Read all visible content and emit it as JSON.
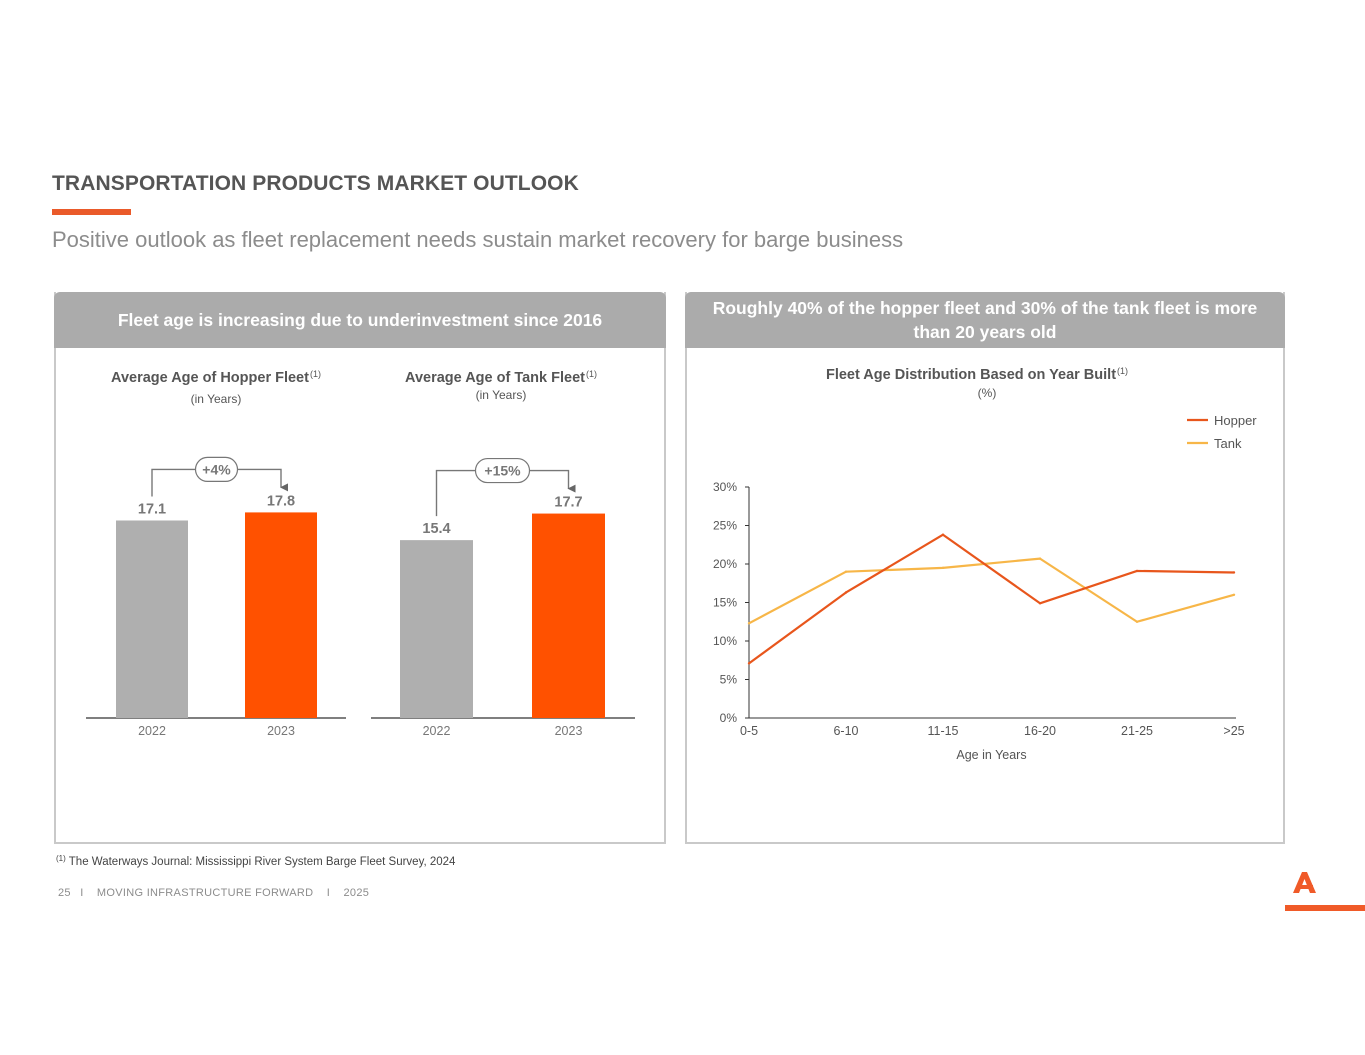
{
  "page": {
    "title": "TRANSPORTATION PRODUCTS MARKET OUTLOOK",
    "subtitle": "Positive outlook as fleet replacement needs sustain market recovery for barge business"
  },
  "colors": {
    "accent": "#ff5100",
    "gray_bar": "#afafaf",
    "hopper": "#e8561c",
    "tank": "#f7b648",
    "panel_head": "#ababab"
  },
  "left_panel": {
    "header": "Fleet age is increasing due to underinvestment since 2016",
    "hopper_chart": {
      "title": "Average Age of Hopper Fleet",
      "sup": "(1)",
      "unit": "(in Years)"
    },
    "tank_chart": {
      "title": "Average Age of Tank Fleet",
      "sup": "(1)",
      "unit": "(in Years)"
    }
  },
  "right_panel": {
    "header": "Roughly 40% of the hopper fleet and 30% of the tank fleet is more than 20 years old",
    "chart": {
      "title": "Fleet Age Distribution Based on Year Built",
      "sup": "(1)",
      "unit": "(%)"
    }
  },
  "chart_data": [
    {
      "type": "bar",
      "title": "Average Age of Hopper Fleet",
      "ylabel": "in Years",
      "categories": [
        "2022",
        "2023"
      ],
      "values": [
        17.1,
        17.8
      ],
      "value_labels": [
        "17.1",
        "17.8"
      ],
      "change_label": "+4%",
      "ylim": [
        0,
        19.7
      ]
    },
    {
      "type": "bar",
      "title": "Average Age of Tank Fleet",
      "ylabel": "in Years",
      "categories": [
        "2022",
        "2023"
      ],
      "values": [
        15.4,
        17.7
      ],
      "value_labels": [
        "15.4",
        "17.7"
      ],
      "change_label": "+15%",
      "ylim": [
        0,
        19.7
      ]
    },
    {
      "type": "line",
      "title": "Fleet Age Distribution Based on Year Built",
      "xlabel": "Age in Years",
      "ylabel": "%",
      "categories": [
        "0-5",
        "6-10",
        "11-15",
        "16-20",
        "21-25",
        ">25"
      ],
      "ylim": [
        0,
        30
      ],
      "yticks": [
        "0%",
        "5%",
        "10%",
        "15%",
        "20%",
        "25%",
        "30%"
      ],
      "series": [
        {
          "name": "Hopper",
          "values": [
            7.1,
            16.3,
            23.8,
            14.9,
            19.1,
            18.9
          ]
        },
        {
          "name": "Tank",
          "values": [
            12.3,
            19.0,
            19.5,
            20.7,
            12.5,
            16.0
          ]
        }
      ],
      "legend": "top-right"
    }
  ],
  "footnote": {
    "marker": "(1)",
    "text": "The Waterways Journal: Mississippi River System Barge Fleet Survey, 2024"
  },
  "footer": {
    "page_number": "25",
    "sep": "I",
    "tagline": "MOVING INFRASTRUCTURE FORWARD",
    "year": "2025"
  }
}
